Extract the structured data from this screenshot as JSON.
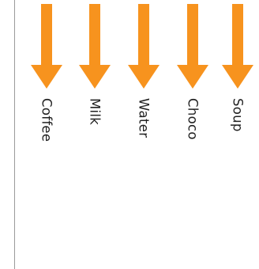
{
  "theme": {
    "arrow_color": "#F7931E",
    "text_color": "#222222",
    "border_color": "#9A9A9A"
  },
  "options": [
    {
      "label": "Coffee",
      "icon": "arrow-down-icon"
    },
    {
      "label": "Milk",
      "icon": "arrow-down-icon"
    },
    {
      "label": "Water",
      "icon": "arrow-down-icon"
    },
    {
      "label": "Choco",
      "icon": "arrow-down-icon"
    },
    {
      "label": "Soup",
      "icon": "arrow-down-icon"
    }
  ]
}
